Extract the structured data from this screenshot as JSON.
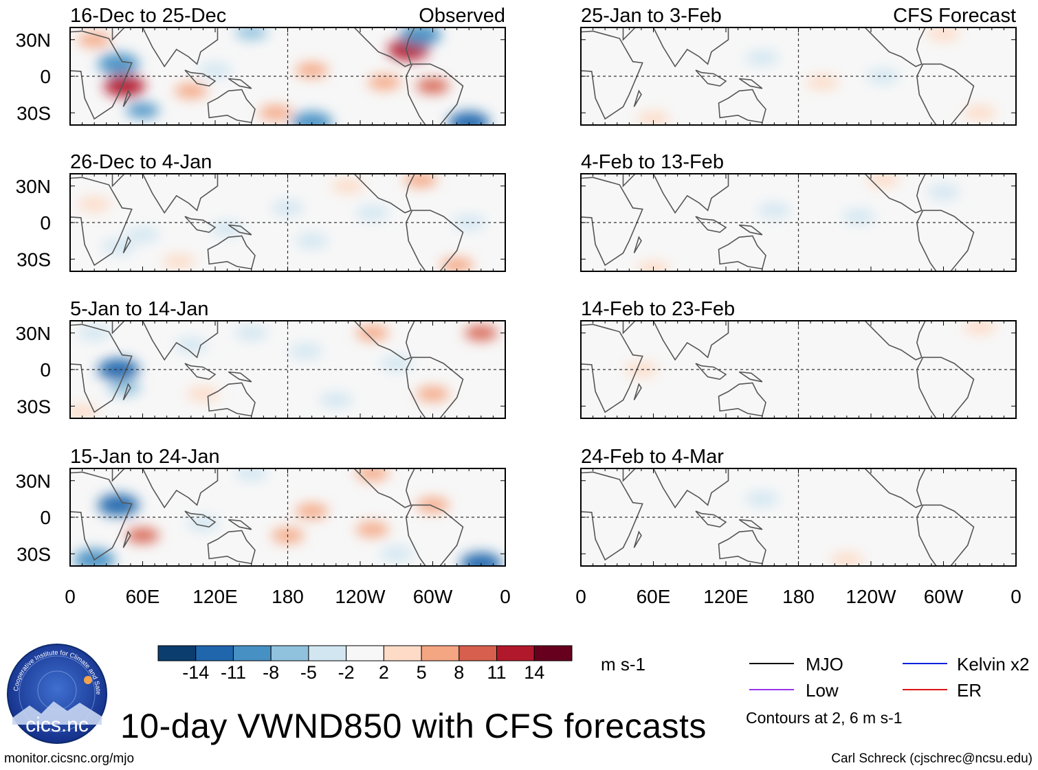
{
  "figure": {
    "title": "10-day VWND850 with CFS forecasts",
    "url": "monitor.cicsnc.org/mjo",
    "credit": "Carl Schreck (cjschrec@ncsu.edu)",
    "units": "m s-1",
    "contour_note": "Contours at 2, 6 m s-1",
    "logo": {
      "name": "cics.nc",
      "ring_text": "Cooperative Institute for Climate and Satellites"
    }
  },
  "column_headers": {
    "left": "Observed",
    "right": "CFS Forecast"
  },
  "colors": {
    "neg_14": "#0b3d6e",
    "neg_11": "#1f66ac",
    "neg_8": "#4690c4",
    "neg_5": "#90c2de",
    "neg_2": "#d1e6f1",
    "zero": "#f7f7f7",
    "pos_2": "#fddbc7",
    "pos_5": "#f4a582",
    "pos_8": "#d6604d",
    "pos_11": "#b2182b",
    "pos_14": "#67001f",
    "mjo": "#000000",
    "kelvin": "#0022dd",
    "low": "#9933ee",
    "er": "#dd1111",
    "land": "#555555"
  },
  "legend": {
    "mjo": "MJO",
    "kelvin": "Kelvin x2",
    "low": "Low",
    "er": "ER"
  },
  "chart_data": {
    "type": "heatmap",
    "variable": "VWND850 anomaly",
    "colorbar": {
      "tick_labels": [
        "-14",
        "-11",
        "-8",
        "-5",
        "-2",
        "2",
        "5",
        "8",
        "11",
        "14"
      ],
      "levels": [
        -14,
        -11,
        -8,
        -5,
        -2,
        2,
        5,
        8,
        11,
        14
      ],
      "n_bins": 11
    },
    "axes": {
      "x_ticks": [
        "0",
        "60E",
        "120E",
        "180",
        "120W",
        "60W",
        "0"
      ],
      "y_ticks": [
        "30N",
        "0",
        "30S"
      ],
      "xlim": [
        0,
        360
      ],
      "ylim": [
        -40,
        40
      ]
    },
    "panels": [
      {
        "title": "16-Dec to 25-Dec",
        "column": "left",
        "source": "Observed",
        "features": [
          {
            "lon": 45,
            "lat": -8,
            "v": 12
          },
          {
            "lon": 40,
            "lat": 10,
            "v": -11
          },
          {
            "lon": 280,
            "lat": 22,
            "v": 11
          },
          {
            "lon": 300,
            "lat": -8,
            "v": 9
          },
          {
            "lon": 200,
            "lat": 5,
            "v": 6
          },
          {
            "lon": 100,
            "lat": -12,
            "v": 5
          },
          {
            "lon": 170,
            "lat": -30,
            "v": 5
          },
          {
            "lon": 260,
            "lat": -5,
            "v": 5
          },
          {
            "lon": 60,
            "lat": -28,
            "v": -9
          },
          {
            "lon": 330,
            "lat": -38,
            "v": -14
          },
          {
            "lon": 200,
            "lat": -38,
            "v": -10
          },
          {
            "lon": 290,
            "lat": 34,
            "v": -10
          },
          {
            "lon": 150,
            "lat": 36,
            "v": -8
          },
          {
            "lon": 120,
            "lat": 5,
            "v": -5
          },
          {
            "lon": 20,
            "lat": 30,
            "v": 5
          }
        ]
      },
      {
        "title": "26-Dec to 4-Jan",
        "column": "left",
        "source": "Observed",
        "features": [
          {
            "lon": 180,
            "lat": 12,
            "v": -5
          },
          {
            "lon": 200,
            "lat": -15,
            "v": -5
          },
          {
            "lon": 130,
            "lat": -5,
            "v": -3
          },
          {
            "lon": 60,
            "lat": -10,
            "v": -4
          },
          {
            "lon": 250,
            "lat": 8,
            "v": -4
          },
          {
            "lon": 330,
            "lat": 0,
            "v": -3
          },
          {
            "lon": 20,
            "lat": 15,
            "v": 4
          },
          {
            "lon": 90,
            "lat": -32,
            "v": 4
          },
          {
            "lon": 320,
            "lat": -35,
            "v": 6
          },
          {
            "lon": 290,
            "lat": 35,
            "v": 6
          },
          {
            "lon": 40,
            "lat": -20,
            "v": -5
          },
          {
            "lon": 230,
            "lat": 30,
            "v": 3
          }
        ]
      },
      {
        "title": "5-Jan to 14-Jan",
        "column": "left",
        "source": "Observed",
        "features": [
          {
            "lon": 40,
            "lat": 0,
            "v": -14
          },
          {
            "lon": 45,
            "lat": -15,
            "v": -8
          },
          {
            "lon": 20,
            "lat": 30,
            "v": -5
          },
          {
            "lon": 150,
            "lat": 30,
            "v": -5
          },
          {
            "lon": 195,
            "lat": 15,
            "v": -4
          },
          {
            "lon": 250,
            "lat": 30,
            "v": 6
          },
          {
            "lon": 340,
            "lat": 30,
            "v": 8
          },
          {
            "lon": 300,
            "lat": -20,
            "v": 5
          },
          {
            "lon": 100,
            "lat": 20,
            "v": -3
          },
          {
            "lon": 270,
            "lat": 5,
            "v": -3
          },
          {
            "lon": 220,
            "lat": -25,
            "v": -3
          },
          {
            "lon": 10,
            "lat": -35,
            "v": 4
          },
          {
            "lon": 110,
            "lat": -20,
            "v": 3
          }
        ]
      },
      {
        "title": "15-Jan to 24-Jan",
        "column": "left",
        "source": "Observed",
        "features": [
          {
            "lon": 40,
            "lat": 10,
            "v": -12
          },
          {
            "lon": 60,
            "lat": -15,
            "v": 9
          },
          {
            "lon": 200,
            "lat": 5,
            "v": 6
          },
          {
            "lon": 180,
            "lat": -15,
            "v": 5
          },
          {
            "lon": 250,
            "lat": -10,
            "v": 5
          },
          {
            "lon": 300,
            "lat": 10,
            "v": 6
          },
          {
            "lon": 20,
            "lat": -35,
            "v": -10
          },
          {
            "lon": 340,
            "lat": -38,
            "v": -14
          },
          {
            "lon": 250,
            "lat": 36,
            "v": 6
          },
          {
            "lon": 150,
            "lat": 36,
            "v": -5
          },
          {
            "lon": 110,
            "lat": -5,
            "v": -4
          },
          {
            "lon": 270,
            "lat": -30,
            "v": -5
          }
        ]
      },
      {
        "title": "25-Jan to 3-Feb",
        "column": "right",
        "source": "CFS Forecast",
        "features": [
          {
            "lon": 150,
            "lat": 15,
            "v": -3
          },
          {
            "lon": 250,
            "lat": 0,
            "v": -3
          },
          {
            "lon": 200,
            "lat": -5,
            "v": 3
          },
          {
            "lon": 300,
            "lat": 35,
            "v": 4
          },
          {
            "lon": 60,
            "lat": -35,
            "v": 3
          },
          {
            "lon": 330,
            "lat": -30,
            "v": 3
          },
          {
            "lon": 110,
            "lat": -10,
            "v": -2
          }
        ]
      },
      {
        "title": "4-Feb to 13-Feb",
        "column": "right",
        "source": "CFS Forecast",
        "features": [
          {
            "lon": 160,
            "lat": 10,
            "v": -3
          },
          {
            "lon": 230,
            "lat": 5,
            "v": -3
          },
          {
            "lon": 60,
            "lat": -38,
            "v": 3
          },
          {
            "lon": 250,
            "lat": 35,
            "v": 3
          },
          {
            "lon": 300,
            "lat": 25,
            "v": -3
          },
          {
            "lon": 30,
            "lat": 20,
            "v": -2
          }
        ]
      },
      {
        "title": "14-Feb to 23-Feb",
        "column": "right",
        "source": "CFS Forecast",
        "features": [
          {
            "lon": 50,
            "lat": 0,
            "v": 3
          },
          {
            "lon": 230,
            "lat": -10,
            "v": -2
          },
          {
            "lon": 280,
            "lat": 5,
            "v": -2
          },
          {
            "lon": 330,
            "lat": 35,
            "v": 3
          }
        ]
      },
      {
        "title": "24-Feb to 4-Mar",
        "column": "right",
        "source": "CFS Forecast",
        "features": [
          {
            "lon": 150,
            "lat": 15,
            "v": -3
          },
          {
            "lon": 230,
            "lat": 5,
            "v": -2
          },
          {
            "lon": 100,
            "lat": -25,
            "v": -2
          },
          {
            "lon": 220,
            "lat": -35,
            "v": 3
          },
          {
            "lon": 300,
            "lat": -10,
            "v": -2
          }
        ]
      }
    ]
  }
}
